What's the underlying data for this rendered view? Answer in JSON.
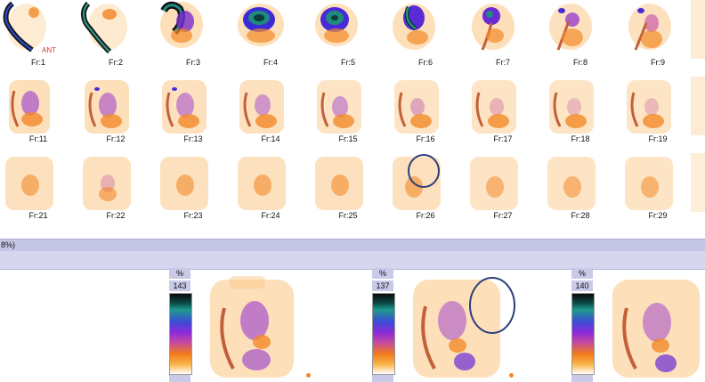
{
  "frames": {
    "row1": [
      "Fr:1",
      "Fr:2",
      "Fr:3",
      "Fr:4",
      "Fr:5",
      "Fr:6",
      "Fr:7",
      "Fr:8",
      "Fr:9"
    ],
    "row2": [
      "Fr:11",
      "Fr:12",
      "Fr:13",
      "Fr:14",
      "Fr:15",
      "Fr:16",
      "Fr:17",
      "Fr:18",
      "Fr:19"
    ],
    "row3": [
      "Fr:21",
      "Fr:22",
      "Fr:23",
      "Fr:24",
      "Fr:25",
      "Fr:26",
      "Fr:27",
      "Fr:28",
      "Fr:29"
    ],
    "ant_label": "ANT"
  },
  "separator": {
    "text": "8%)"
  },
  "scales": [
    {
      "unit": "%",
      "max": "143",
      "min": "0"
    },
    {
      "unit": "%",
      "max": "137",
      "min": "0"
    },
    {
      "unit": "%",
      "max": "140",
      "min": "0"
    }
  ],
  "colors": {
    "lavender_bar": "#c5c6e4",
    "hot_orange": "#f2862a",
    "annotation_circle": "#2d3f7a",
    "ant_red": "#e03030"
  }
}
